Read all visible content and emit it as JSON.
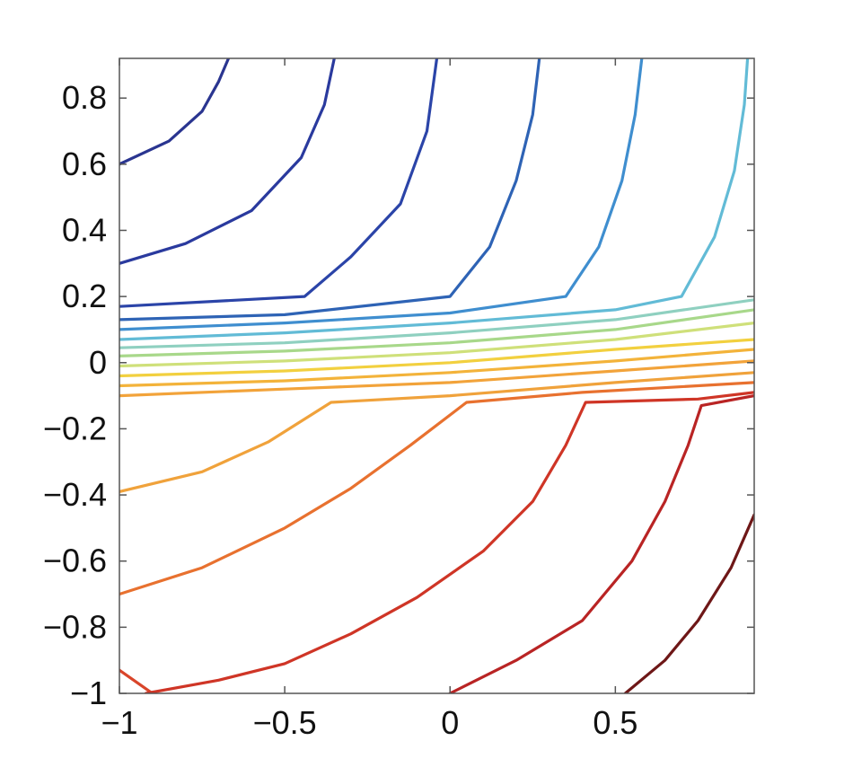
{
  "chart_data": {
    "type": "line",
    "subtype": "contour",
    "title": "",
    "xlabel": "",
    "ylabel": "",
    "xlim": [
      -1,
      0.92
    ],
    "ylim": [
      -1,
      0.92
    ],
    "grid": false,
    "legend": "none",
    "x_ticks": [
      {
        "value": -1,
        "label": "−1"
      },
      {
        "value": -0.5,
        "label": "−0.5"
      },
      {
        "value": 0,
        "label": "0"
      },
      {
        "value": 0.5,
        "label": "0.5"
      }
    ],
    "y_ticks": [
      {
        "value": 0.8,
        "label": "0.8"
      },
      {
        "value": 0.6,
        "label": "0.6"
      },
      {
        "value": 0.4,
        "label": "0.4"
      },
      {
        "value": 0.2,
        "label": "0.2"
      },
      {
        "value": 0,
        "label": "0"
      },
      {
        "value": -0.2,
        "label": "−0.2"
      },
      {
        "value": -0.4,
        "label": "−0.4"
      },
      {
        "value": -0.6,
        "label": "−0.6"
      },
      {
        "value": -0.8,
        "label": "−0.8"
      },
      {
        "value": -1,
        "label": "−1"
      }
    ],
    "series": [
      {
        "color": "#2a3590",
        "points": [
          [
            -1,
            0.6
          ],
          [
            -0.85,
            0.67
          ],
          [
            -0.75,
            0.76
          ],
          [
            -0.7,
            0.85
          ],
          [
            -0.67,
            0.92
          ]
        ]
      },
      {
        "color": "#2a3a9e",
        "points": [
          [
            -1,
            0.3
          ],
          [
            -0.8,
            0.36
          ],
          [
            -0.6,
            0.46
          ],
          [
            -0.45,
            0.62
          ],
          [
            -0.38,
            0.78
          ],
          [
            -0.35,
            0.92
          ]
        ]
      },
      {
        "color": "#2b44a8",
        "points": [
          [
            -1,
            0.17
          ],
          [
            -0.44,
            0.2
          ],
          [
            -0.3,
            0.32
          ],
          [
            -0.15,
            0.48
          ],
          [
            -0.07,
            0.7
          ],
          [
            -0.04,
            0.92
          ]
        ]
      },
      {
        "color": "#2e63b5",
        "points": [
          [
            -1,
            0.13
          ],
          [
            -0.5,
            0.145
          ],
          [
            0,
            0.2
          ],
          [
            0.12,
            0.35
          ],
          [
            0.2,
            0.55
          ],
          [
            0.25,
            0.75
          ],
          [
            0.27,
            0.92
          ]
        ]
      },
      {
        "color": "#3f8ecf",
        "points": [
          [
            -1,
            0.1
          ],
          [
            -0.5,
            0.12
          ],
          [
            0,
            0.15
          ],
          [
            0.35,
            0.2
          ],
          [
            0.45,
            0.35
          ],
          [
            0.52,
            0.55
          ],
          [
            0.56,
            0.75
          ],
          [
            0.58,
            0.92
          ]
        ]
      },
      {
        "color": "#62bbd6",
        "points": [
          [
            -1,
            0.07
          ],
          [
            -0.5,
            0.09
          ],
          [
            0,
            0.12
          ],
          [
            0.5,
            0.16
          ],
          [
            0.7,
            0.2
          ],
          [
            0.8,
            0.38
          ],
          [
            0.86,
            0.58
          ],
          [
            0.89,
            0.78
          ],
          [
            0.9,
            0.92
          ]
        ]
      },
      {
        "color": "#8fd0c0",
        "points": [
          [
            -1,
            0.045
          ],
          [
            -0.5,
            0.06
          ],
          [
            0,
            0.09
          ],
          [
            0.5,
            0.13
          ],
          [
            0.92,
            0.19
          ]
        ]
      },
      {
        "color": "#a8d88a",
        "points": [
          [
            -1,
            0.02
          ],
          [
            -0.5,
            0.035
          ],
          [
            0,
            0.06
          ],
          [
            0.5,
            0.1
          ],
          [
            0.92,
            0.16
          ]
        ]
      },
      {
        "color": "#cfe07a",
        "points": [
          [
            -1,
            -0.01
          ],
          [
            -0.5,
            0.005
          ],
          [
            0,
            0.03
          ],
          [
            0.5,
            0.07
          ],
          [
            0.92,
            0.12
          ]
        ]
      },
      {
        "color": "#f2d03f",
        "points": [
          [
            -1,
            -0.04
          ],
          [
            -0.5,
            -0.025
          ],
          [
            0,
            0.0
          ],
          [
            0.5,
            0.04
          ],
          [
            0.92,
            0.07
          ]
        ]
      },
      {
        "color": "#f3b33a",
        "points": [
          [
            -1,
            -0.07
          ],
          [
            -0.5,
            -0.055
          ],
          [
            0,
            -0.03
          ],
          [
            0.5,
            0.005
          ],
          [
            0.92,
            0.04
          ]
        ]
      },
      {
        "color": "#f2a33a",
        "points": [
          [
            -1,
            -0.1
          ],
          [
            -0.5,
            -0.08
          ],
          [
            0,
            -0.06
          ],
          [
            0.5,
            -0.025
          ],
          [
            0.92,
            0.005
          ]
        ]
      },
      {
        "color": "#f0a23b",
        "points": [
          [
            -1,
            -0.39
          ],
          [
            -0.75,
            -0.33
          ],
          [
            -0.55,
            -0.24
          ],
          [
            -0.36,
            -0.12
          ],
          [
            0,
            -0.1
          ],
          [
            0.5,
            -0.06
          ],
          [
            0.92,
            -0.03
          ]
        ]
      },
      {
        "color": "#e8712f",
        "points": [
          [
            -1,
            -0.7
          ],
          [
            -0.75,
            -0.62
          ],
          [
            -0.5,
            -0.5
          ],
          [
            -0.3,
            -0.38
          ],
          [
            -0.12,
            -0.25
          ],
          [
            0.05,
            -0.12
          ],
          [
            0.4,
            -0.09
          ],
          [
            0.92,
            -0.06
          ]
        ]
      },
      {
        "color": "#d9452a",
        "points": [
          [
            -1,
            -0.93
          ],
          [
            -0.9,
            -1.0
          ]
        ]
      },
      {
        "color": "#cf3526",
        "points": [
          [
            -0.92,
            -1
          ],
          [
            -0.7,
            -0.96
          ],
          [
            -0.5,
            -0.91
          ],
          [
            -0.3,
            -0.82
          ],
          [
            -0.1,
            -0.71
          ],
          [
            0.1,
            -0.57
          ],
          [
            0.25,
            -0.42
          ],
          [
            0.35,
            -0.25
          ],
          [
            0.41,
            -0.12
          ],
          [
            0.75,
            -0.11
          ],
          [
            0.92,
            -0.09
          ]
        ]
      },
      {
        "color": "#b92424",
        "points": [
          [
            0.0,
            -1
          ],
          [
            0.2,
            -0.9
          ],
          [
            0.4,
            -0.78
          ],
          [
            0.55,
            -0.6
          ],
          [
            0.65,
            -0.42
          ],
          [
            0.72,
            -0.25
          ],
          [
            0.76,
            -0.13
          ],
          [
            0.92,
            -0.1
          ]
        ]
      },
      {
        "color": "#6e1717",
        "points": [
          [
            0.53,
            -1
          ],
          [
            0.65,
            -0.9
          ],
          [
            0.75,
            -0.78
          ],
          [
            0.85,
            -0.62
          ],
          [
            0.92,
            -0.46
          ]
        ]
      }
    ]
  }
}
